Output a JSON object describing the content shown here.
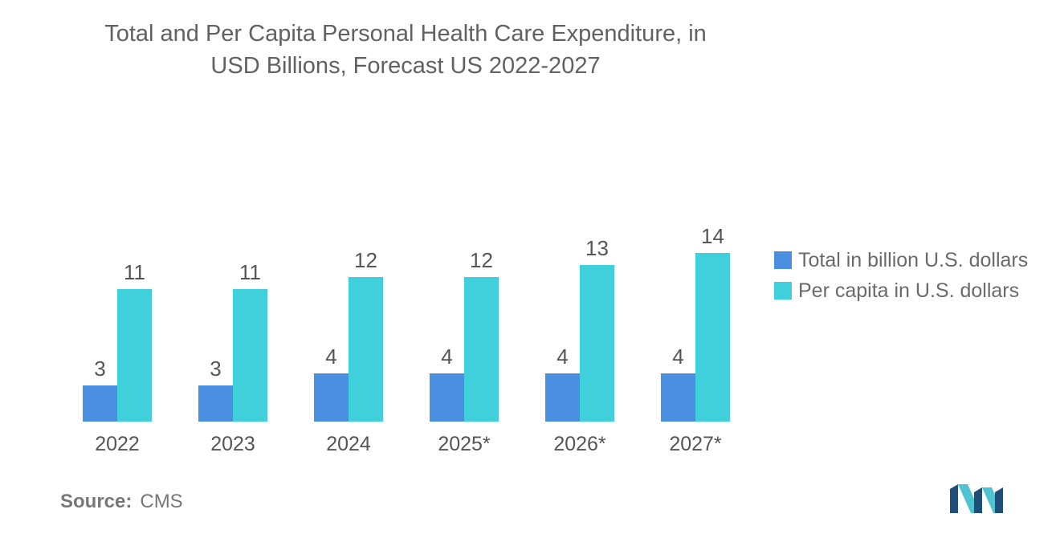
{
  "title_lines": [
    "Total and Per Capita Personal Health Care Expenditure, in",
    "USD Billions, Forecast US 2022-2027"
  ],
  "chart_data": {
    "type": "bar",
    "title": "Total and Per Capita Personal Health Care Expenditure, in USD Billions, Forecast US 2022-2027",
    "categories": [
      "2022",
      "2023",
      "2024",
      "2025*",
      "2026*",
      "2027*"
    ],
    "series": [
      {
        "name": "Total in billion U.S. dollars",
        "values": [
          3,
          3,
          4,
          4,
          4,
          4
        ],
        "color": "#4a8fe0"
      },
      {
        "name": "Per capita in U.S. dollars",
        "values": [
          11,
          11,
          12,
          12,
          13,
          14
        ],
        "color": "#3fd0db"
      }
    ],
    "xlabel": "",
    "ylabel": "",
    "ylim": [
      0,
      15
    ],
    "grid": false,
    "legend_position": "right"
  },
  "source": {
    "label": "Source:",
    "value": "CMS"
  },
  "colors": {
    "title": "#616161",
    "label": "#555555",
    "logo_dark": "#1f4e79",
    "logo_light": "#4fc3cf"
  }
}
